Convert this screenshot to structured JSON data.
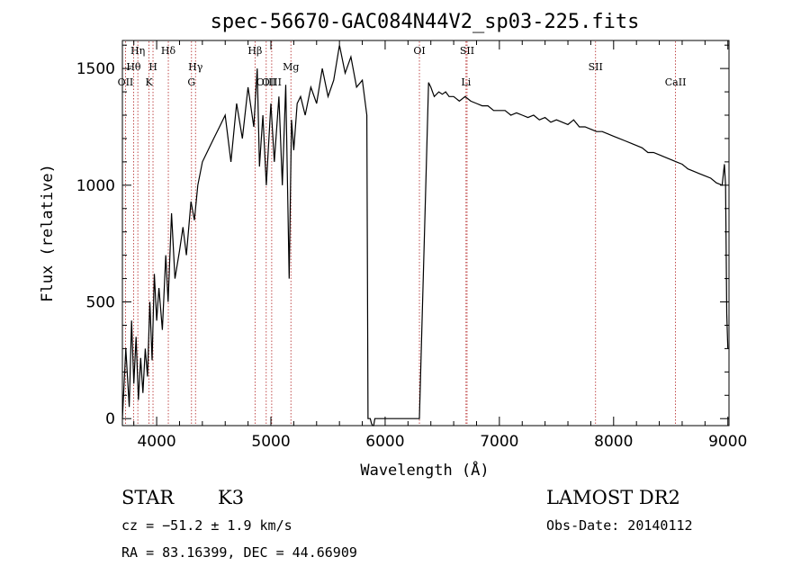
{
  "chart_data": {
    "type": "line",
    "title": "spec-56670-GAC084N44V2_sp03-225.fits",
    "xlabel": "Wavelength (Å)",
    "ylabel": "Flux (relative)",
    "xlim": [
      3700,
      9010
    ],
    "ylim": [
      -30,
      1620
    ],
    "xticks": [
      {
        "value": 4000,
        "label": "4000"
      },
      {
        "value": 5000,
        "label": "5000"
      },
      {
        "value": 6000,
        "label": "6000"
      },
      {
        "value": 7000,
        "label": "7000"
      },
      {
        "value": 8000,
        "label": "8000"
      },
      {
        "value": 9000,
        "label": "9000"
      }
    ],
    "yticks": [
      {
        "value": 0,
        "label": "0"
      },
      {
        "value": 500,
        "label": "500"
      },
      {
        "value": 1000,
        "label": "1000"
      },
      {
        "value": 1500,
        "label": "1500"
      }
    ],
    "series": [
      {
        "color": "#000000",
        "x": [
          3700,
          3730,
          3760,
          3780,
          3800,
          3820,
          3840,
          3860,
          3880,
          3900,
          3920,
          3940,
          3960,
          3980,
          4000,
          4020,
          4050,
          4080,
          4100,
          4130,
          4160,
          4200,
          4230,
          4260,
          4300,
          4330,
          4360,
          4400,
          4450,
          4500,
          4550,
          4600,
          4650,
          4700,
          4750,
          4800,
          4850,
          4880,
          4900,
          4930,
          4960,
          5000,
          5030,
          5070,
          5100,
          5130,
          5160,
          5180,
          5200,
          5230,
          5260,
          5300,
          5350,
          5400,
          5450,
          5500,
          5550,
          5600,
          5650,
          5700,
          5750,
          5800,
          5840,
          5850,
          5870,
          5880,
          5890,
          5900,
          5910,
          5930,
          6000,
          6100,
          6200,
          6300,
          6350,
          6380,
          6400,
          6430,
          6470,
          6500,
          6530,
          6560,
          6600,
          6650,
          6700,
          6750,
          6800,
          6850,
          6900,
          6950,
          7000,
          7050,
          7100,
          7150,
          7200,
          7250,
          7300,
          7350,
          7400,
          7450,
          7500,
          7550,
          7600,
          7650,
          7700,
          7750,
          7800,
          7850,
          7900,
          7950,
          8000,
          8050,
          8100,
          8150,
          8200,
          8250,
          8300,
          8350,
          8400,
          8450,
          8500,
          8550,
          8600,
          8650,
          8700,
          8750,
          8800,
          8850,
          8900,
          8950,
          8970,
          8980,
          8990,
          9000
        ],
        "y": [
          0,
          300,
          50,
          420,
          150,
          350,
          80,
          260,
          110,
          300,
          180,
          500,
          250,
          620,
          420,
          560,
          380,
          700,
          500,
          880,
          600,
          720,
          820,
          700,
          930,
          850,
          1000,
          1100,
          1150,
          1200,
          1250,
          1300,
          1100,
          1350,
          1200,
          1420,
          1250,
          1500,
          1080,
          1300,
          1000,
          1350,
          1100,
          1380,
          1000,
          1430,
          600,
          1280,
          1150,
          1350,
          1380,
          1300,
          1420,
          1350,
          1500,
          1380,
          1450,
          1600,
          1480,
          1550,
          1420,
          1450,
          1300,
          0,
          0,
          -20,
          -40,
          -40,
          0,
          0,
          0,
          0,
          0,
          0,
          900,
          1440,
          1420,
          1380,
          1400,
          1390,
          1400,
          1380,
          1380,
          1360,
          1380,
          1360,
          1350,
          1340,
          1340,
          1320,
          1320,
          1320,
          1300,
          1310,
          1300,
          1290,
          1300,
          1280,
          1290,
          1270,
          1280,
          1270,
          1260,
          1280,
          1250,
          1250,
          1240,
          1230,
          1230,
          1220,
          1210,
          1200,
          1190,
          1180,
          1170,
          1160,
          1140,
          1140,
          1130,
          1120,
          1110,
          1100,
          1090,
          1070,
          1060,
          1050,
          1040,
          1030,
          1010,
          1000,
          1090,
          1000,
          450,
          300
        ]
      }
    ],
    "line_markers": [
      {
        "label": "Hη",
        "wavelength": 3835,
        "row": 0
      },
      {
        "label": "Hδ",
        "wavelength": 4102,
        "row": 0
      },
      {
        "label": "Hβ",
        "wavelength": 4861,
        "row": 0
      },
      {
        "label": "OI",
        "wavelength": 6300,
        "row": 0
      },
      {
        "label": "SII",
        "wavelength": 6717,
        "row": 0
      },
      {
        "label": "Hθ",
        "wavelength": 3798,
        "row": 1
      },
      {
        "label": "H",
        "wavelength": 3968,
        "row": 1
      },
      {
        "label": "Hγ",
        "wavelength": 4340,
        "row": 1
      },
      {
        "label": "Mg",
        "wavelength": 5175,
        "row": 1
      },
      {
        "label": "SII",
        "wavelength": 7842,
        "row": 1
      },
      {
        "label": "OII",
        "wavelength": 3727,
        "row": 2
      },
      {
        "label": "K",
        "wavelength": 3933,
        "row": 2
      },
      {
        "label": "G",
        "wavelength": 4305,
        "row": 2
      },
      {
        "label": "OIII",
        "wavelength": 4959,
        "row": 2
      },
      {
        "label": "OIII",
        "wavelength": 5007,
        "row": 2
      },
      {
        "label": "Li",
        "wavelength": 6708,
        "row": 2
      },
      {
        "label": "CaII",
        "wavelength": 8542,
        "row": 2
      }
    ]
  },
  "info": {
    "object_class": "STAR",
    "subclass": "K3",
    "survey": "LAMOST DR2",
    "redshift": "cz = −51.2 ± 1.9 km/s",
    "obs_date": "Obs-Date: 20140112",
    "coords": "RA =  83.16399, DEC =  44.66909"
  }
}
